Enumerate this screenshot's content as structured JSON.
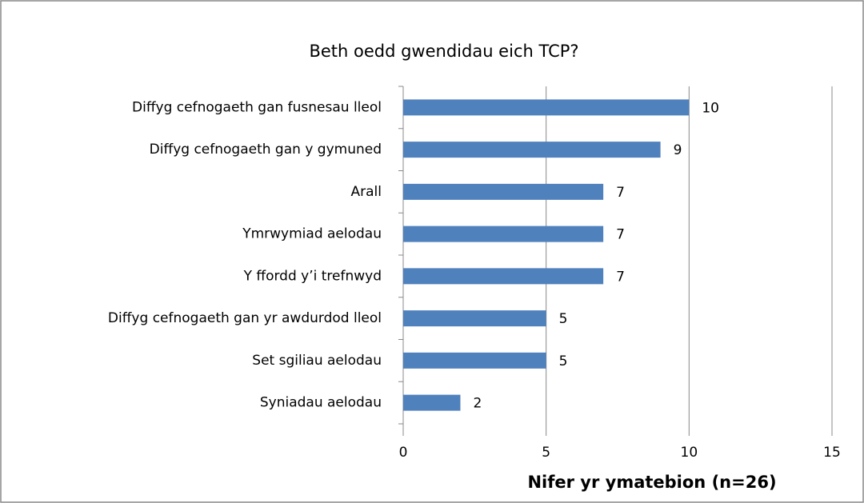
{
  "chart_data": {
    "type": "bar",
    "orientation": "horizontal",
    "title": "Beth oedd gwendidau eich TCP?",
    "x_label": "Nifer yr ymatebion (n=26)",
    "categories": [
      "Diffyg cefnogaeth gan fusnesau lleol",
      "Diffyg cefnogaeth gan y gymuned",
      "Arall",
      "Ymrwymiad aelodau",
      "Y ffordd y’i trefnwyd",
      "Diffyg cefnogaeth gan yr awdurdod lleol",
      "Set sgiliau aelodau",
      "Syniadau aelodau"
    ],
    "values": [
      10,
      9,
      7,
      7,
      7,
      5,
      5,
      2
    ],
    "color": "#4f81bd",
    "xlim": [
      0,
      15
    ],
    "xticks": [
      0,
      5,
      10,
      15
    ],
    "grid": true
  }
}
